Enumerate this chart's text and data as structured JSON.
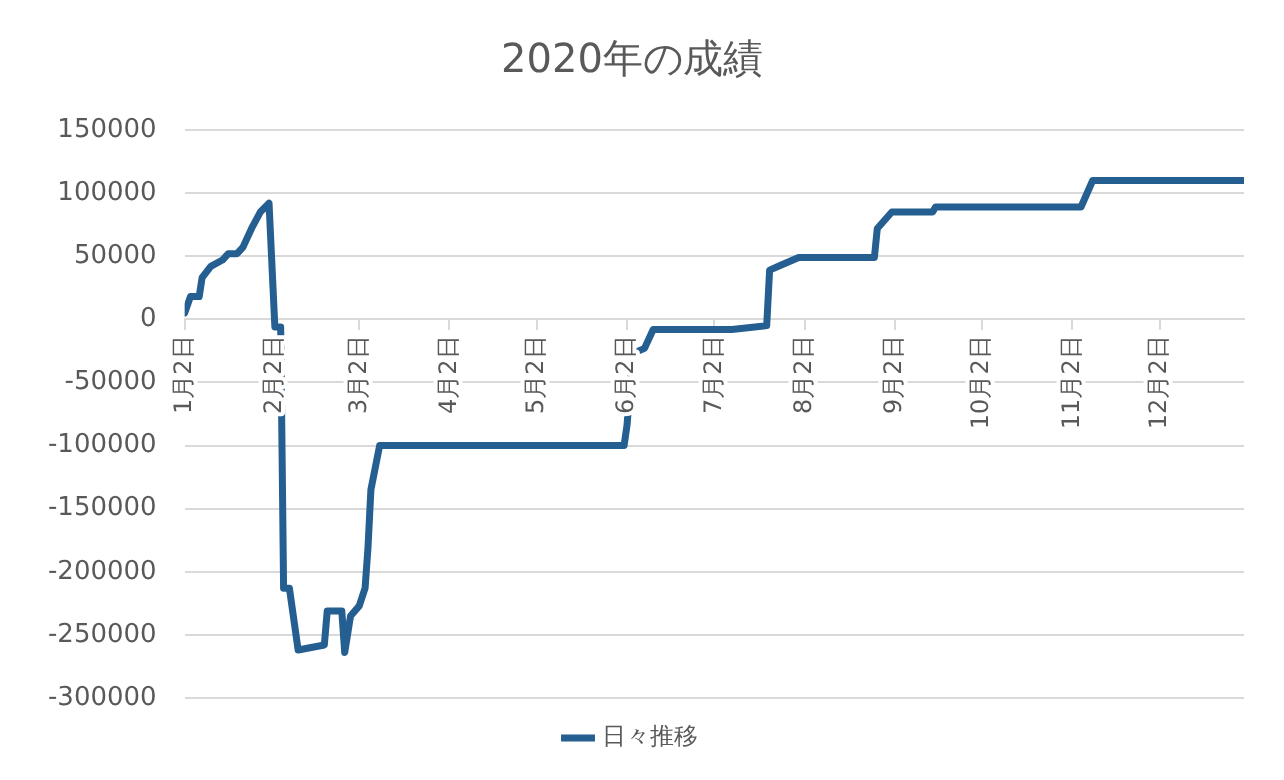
{
  "chart_data": {
    "type": "line",
    "title": "2020年の成績",
    "x": [
      "2020-01-02",
      "2020-01-04",
      "2020-01-07",
      "2020-01-08",
      "2020-01-11",
      "2020-01-15",
      "2020-01-17",
      "2020-01-20",
      "2020-01-22",
      "2020-01-25",
      "2020-01-28",
      "2020-01-31",
      "2020-02-02",
      "2020-02-04",
      "2020-02-05",
      "2020-02-07",
      "2020-02-10",
      "2020-02-19",
      "2020-02-20",
      "2020-02-25",
      "2020-02-26",
      "2020-02-28",
      "2020-03-02",
      "2020-03-04",
      "2020-03-05",
      "2020-03-06",
      "2020-03-09",
      "2020-06-01",
      "2020-06-02",
      "2020-06-04",
      "2020-06-08",
      "2020-06-11",
      "2020-07-08",
      "2020-07-20",
      "2020-07-21",
      "2020-07-25",
      "2020-07-31",
      "2020-08-26",
      "2020-08-27",
      "2020-09-01",
      "2020-09-15",
      "2020-09-16",
      "2020-11-05",
      "2020-11-09",
      "2020-12-31"
    ],
    "series": [
      {
        "name": "日々推移",
        "color": "#255e91",
        "values": [
          5000,
          18000,
          18000,
          33000,
          42000,
          47000,
          52000,
          52000,
          57000,
          72000,
          85000,
          92000,
          -6000,
          -6000,
          -213000,
          -213000,
          -262000,
          -258000,
          -231000,
          -231000,
          -264000,
          -235000,
          -227000,
          -213000,
          -181000,
          -135000,
          -100000,
          -100000,
          -84000,
          -27000,
          -23000,
          -8000,
          -8000,
          -5000,
          39000,
          43000,
          49000,
          49000,
          72000,
          85000,
          85000,
          89000,
          89000,
          110000,
          110000
        ]
      }
    ],
    "xlim": [
      "2020-01-02",
      "2020-12-31"
    ],
    "xticks": [
      {
        "value": "2020-01-02",
        "label": "1月2日"
      },
      {
        "value": "2020-02-02",
        "label": "2月2日"
      },
      {
        "value": "2020-03-02",
        "label": "3月2日"
      },
      {
        "value": "2020-04-02",
        "label": "4月2日"
      },
      {
        "value": "2020-05-02",
        "label": "5月2日"
      },
      {
        "value": "2020-06-02",
        "label": "6月2日"
      },
      {
        "value": "2020-07-02",
        "label": "7月2日"
      },
      {
        "value": "2020-08-02",
        "label": "8月2日"
      },
      {
        "value": "2020-09-02",
        "label": "9月2日"
      },
      {
        "value": "2020-10-02",
        "label": "10月2日"
      },
      {
        "value": "2020-11-02",
        "label": "11月2日"
      },
      {
        "value": "2020-12-02",
        "label": "12月2日"
      }
    ],
    "ylim": [
      -300000,
      150000
    ],
    "yticks": [
      -300000,
      -250000,
      -200000,
      -150000,
      -100000,
      -50000,
      0,
      50000,
      100000,
      150000
    ],
    "grid": "y",
    "legend": "bottom",
    "marker": "none",
    "line_style": "solid"
  }
}
